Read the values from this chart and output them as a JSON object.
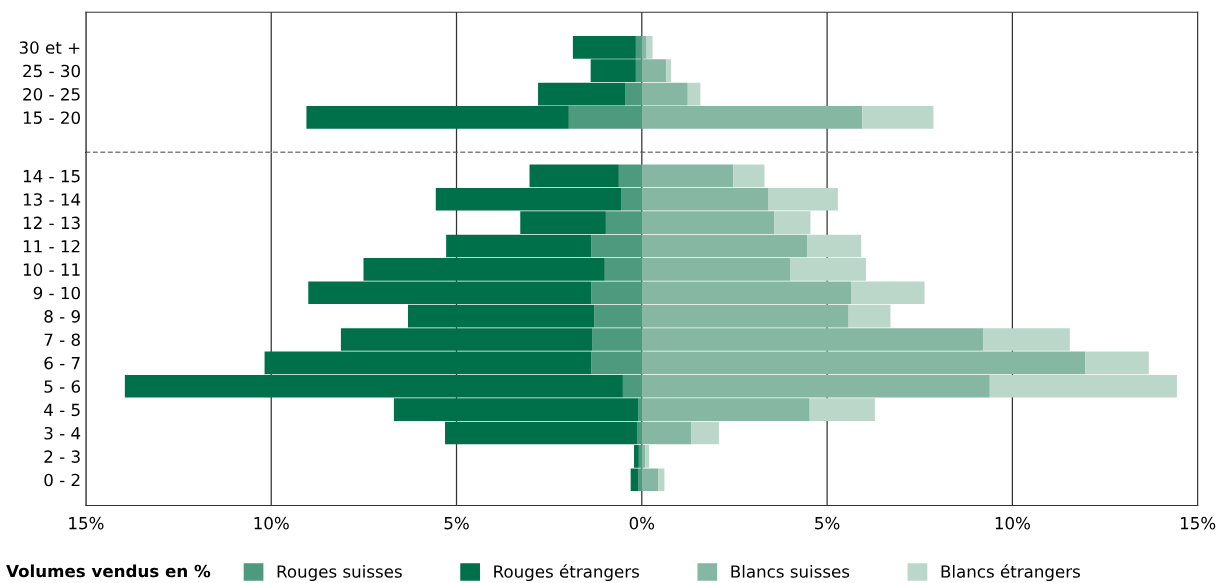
{
  "chart_data": [
    {
      "type": "bar",
      "orientation": "horizontal",
      "stacked": true,
      "tick_labels": "y",
      "categories": [
        "30 et +",
        "25 - 30",
        "20 - 25",
        "15 - 20"
      ],
      "series": [
        {
          "color": "#4d9a7e",
          "values": [
            -0.16,
            -0.16,
            -0.44,
            -1.97
          ]
        },
        {
          "color": "#00704a",
          "values": [
            -1.7,
            -1.22,
            -2.36,
            -7.08
          ]
        },
        {
          "color": "#85b7a2",
          "values": [
            0.13,
            0.66,
            1.24,
            5.95
          ]
        },
        {
          "color": "#bad7ca",
          "values": [
            0.16,
            0.13,
            0.34,
            1.92
          ]
        }
      ],
      "xlim": [
        -15,
        15
      ],
      "xticks": [
        {
          "value": -15,
          "label": null
        },
        {
          "value": -10,
          "label": null
        },
        {
          "value": -5,
          "label": null
        },
        {
          "value": 0,
          "label": null
        },
        {
          "value": 5,
          "label": null
        },
        {
          "value": 10,
          "label": null
        },
        {
          "value": 15,
          "label": null
        }
      ],
      "grid": "x"
    },
    {
      "type": "bar",
      "orientation": "horizontal",
      "stacked": true,
      "categories": [
        "14 - 15",
        "13 - 14",
        "12 - 13",
        "11 - 12",
        "10 - 11",
        "9 - 10",
        "8 - 9",
        "7 - 8",
        "6 - 7",
        "5 - 6",
        "4 - 5",
        "3 - 4",
        "2 - 3",
        "0 - 2"
      ],
      "series": [
        {
          "name": "Rouges suisses",
          "color": "#4d9a7e",
          "values": [
            -0.62,
            -0.56,
            -0.97,
            -1.36,
            -1.0,
            -1.36,
            -1.28,
            -1.33,
            -1.36,
            -0.51,
            -0.1,
            -0.13,
            -0.08,
            -0.1
          ]
        },
        {
          "name": "Rouges étrangers",
          "color": "#00704a",
          "values": [
            -2.41,
            -5.0,
            -2.31,
            -3.92,
            -6.51,
            -7.64,
            -5.03,
            -6.79,
            -8.82,
            -13.44,
            -6.59,
            -5.18,
            -0.13,
            -0.2
          ]
        },
        {
          "name": "Blancs suisses",
          "color": "#85b7a2",
          "values": [
            2.47,
            3.42,
            3.58,
            4.47,
            4.0,
            5.66,
            5.58,
            9.21,
            11.97,
            9.39,
            4.53,
            1.34,
            0.09,
            0.45
          ]
        },
        {
          "name": "Blancs étrangers",
          "color": "#bad7ca",
          "values": [
            0.84,
            1.87,
            0.97,
            1.45,
            2.05,
            1.97,
            1.13,
            2.34,
            1.71,
            5.05,
            1.76,
            0.74,
            0.11,
            0.16
          ]
        }
      ],
      "xlim": [
        -15,
        15
      ],
      "xticks": [
        {
          "value": -15,
          "label": "15%"
        },
        {
          "value": -10,
          "label": "10%"
        },
        {
          "value": -5,
          "label": "5%"
        },
        {
          "value": 0,
          "label": "0%"
        },
        {
          "value": 5,
          "label": "5%"
        },
        {
          "value": 10,
          "label": "10%"
        },
        {
          "value": 15,
          "label": "15%"
        }
      ],
      "grid": "x",
      "legend": "bottom",
      "legend_title": "Volumes vendus en %"
    }
  ]
}
